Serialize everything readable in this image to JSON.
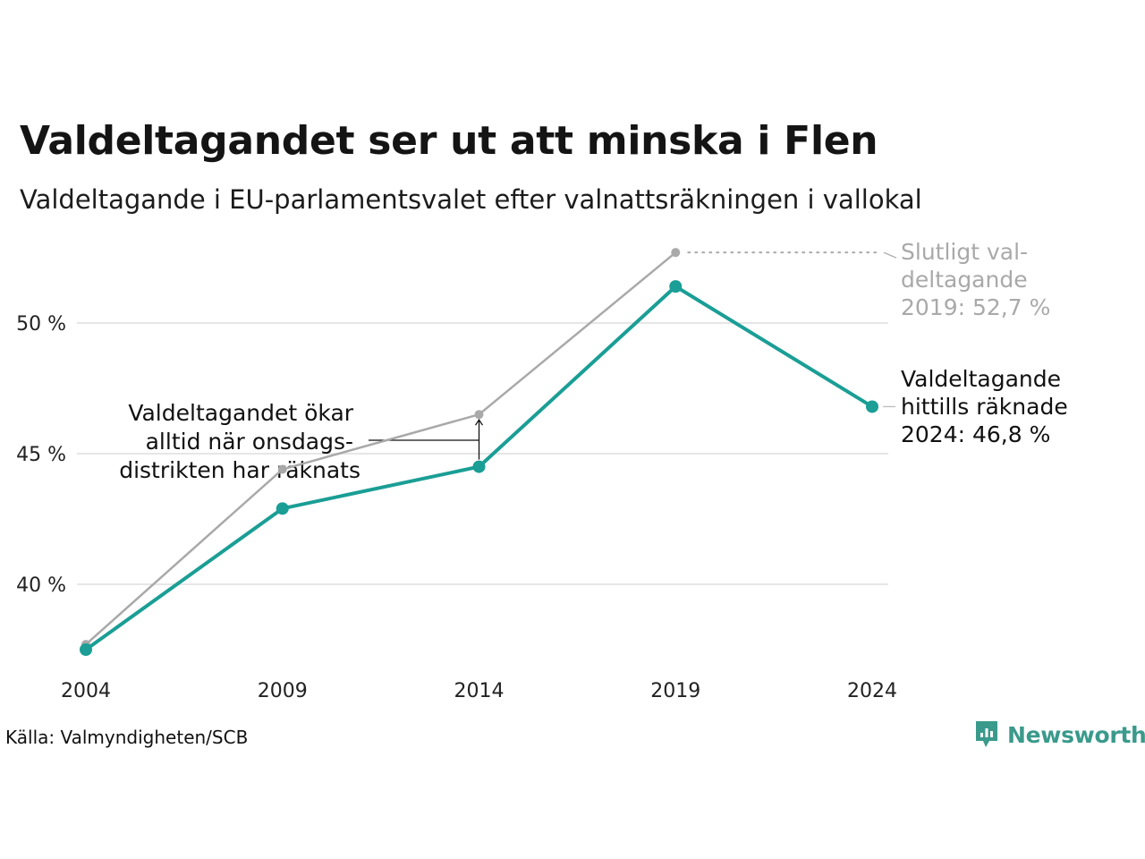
{
  "title": "Valdeltagandet ser ut att minska i Flen",
  "subtitle": "Valdeltagande i EU-parlamentsvalet efter valnattsräkningen i vallokal",
  "source": "Källa: Valmyndigheten/SCB",
  "brand": {
    "name": "Newsworthy",
    "icon": "newsworthy-logo-icon",
    "color": "#3a9a8c"
  },
  "colors": {
    "primary": "#1a9e95",
    "secondary": "#a9a9a9",
    "grid": "#e6e6e6"
  },
  "chart_data": {
    "type": "line",
    "x": [
      2004,
      2009,
      2014,
      2019,
      2024
    ],
    "xticks": [
      "2004",
      "2009",
      "2014",
      "2019",
      "2024"
    ],
    "yticks": [
      {
        "value": 40,
        "label": "40 %"
      },
      {
        "value": 45,
        "label": "45 %"
      },
      {
        "value": 50,
        "label": "50 %"
      }
    ],
    "ylim": [
      37,
      53
    ],
    "grid": true,
    "series": [
      {
        "key": "final",
        "values": [
          37.7,
          44.4,
          46.5,
          52.7,
          null
        ],
        "color": "#a9a9a9"
      },
      {
        "key": "counted",
        "values": [
          37.5,
          42.9,
          44.5,
          51.4,
          46.8
        ],
        "color": "#1a9e95"
      }
    ],
    "annotations": {
      "final_2019": [
        "Slutligt val-",
        "deltagande",
        "2019: 52,7 %"
      ],
      "counted_2024": [
        "Valdeltagande",
        "hittills räknade",
        "2024: 46,8 %"
      ],
      "wednesday": [
        "Valdeltagandet ökar",
        "alltid när onsdags-",
        "distrikten har räknats"
      ]
    }
  }
}
